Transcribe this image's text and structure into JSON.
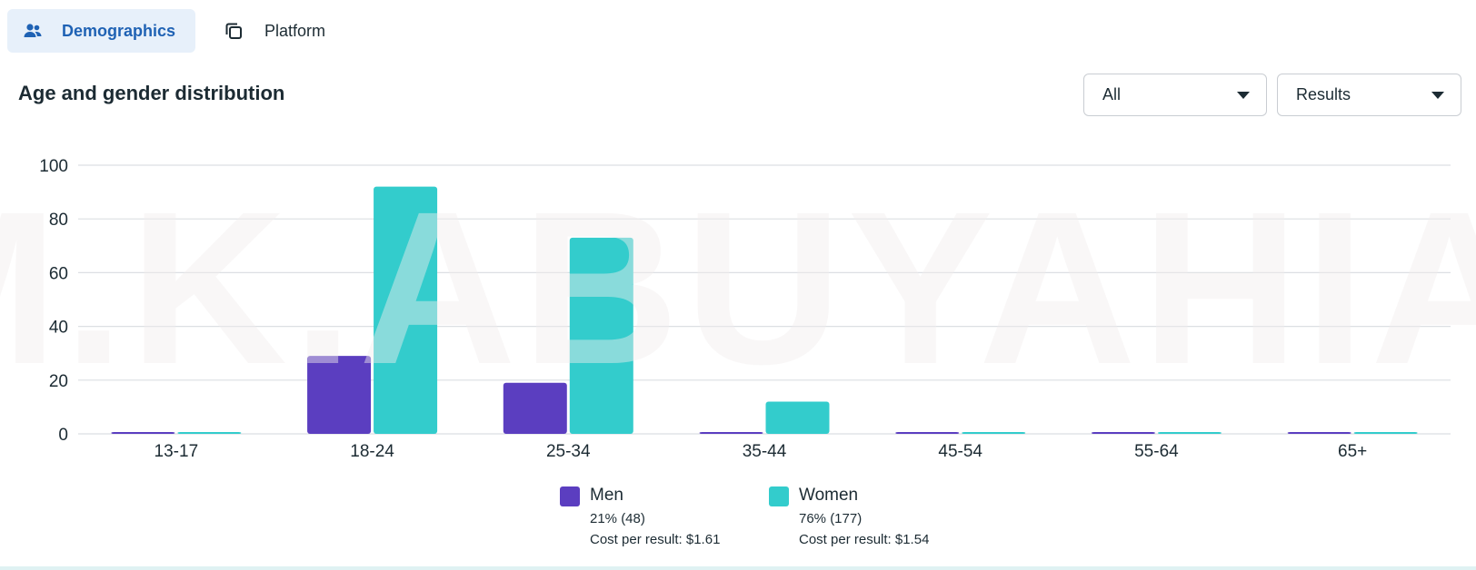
{
  "tabs": [
    {
      "label": "Demographics",
      "icon": "people-icon",
      "active": true
    },
    {
      "label": "Platform",
      "icon": "copy-icon",
      "active": false
    }
  ],
  "section": {
    "title": "Age and gender distribution",
    "filter_select": {
      "value": "All"
    },
    "metric_select": {
      "value": "Results"
    }
  },
  "colors": {
    "men": "#5b3ec0",
    "women": "#33cccc",
    "accent": "#1f62b4",
    "grid": "#dcdfe3"
  },
  "chart_data": {
    "type": "bar",
    "categories": [
      "13-17",
      "18-24",
      "25-34",
      "35-44",
      "45-54",
      "55-64",
      "65+"
    ],
    "series": [
      {
        "name": "Men",
        "values": [
          0,
          29,
          19,
          0,
          0,
          0,
          0
        ]
      },
      {
        "name": "Women",
        "values": [
          0,
          92,
          73,
          12,
          0,
          0,
          0
        ]
      }
    ],
    "yticks": [
      0,
      20,
      40,
      60,
      80,
      100
    ],
    "ylim": [
      0,
      100
    ],
    "grid": true,
    "legend_position": "bottom"
  },
  "legend": [
    {
      "name": "Men",
      "percent": "21% (48)",
      "cost": "Cost per result: $1.61"
    },
    {
      "name": "Women",
      "percent": "76% (177)",
      "cost": "Cost per result: $1.54"
    }
  ],
  "watermark": "M.K.ABUYAHIA."
}
